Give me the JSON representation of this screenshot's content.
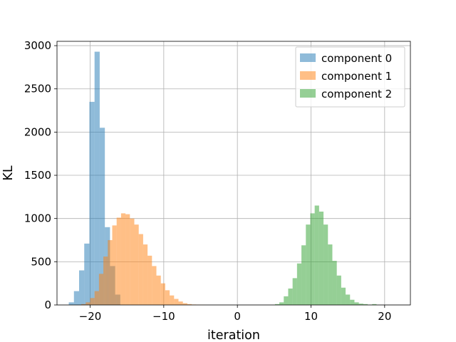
{
  "chart_data": {
    "type": "bar",
    "xlabel": "iteration",
    "ylabel": "KL",
    "xlim": [
      -24.5,
      23.5
    ],
    "ylim": [
      0,
      3050
    ],
    "xticks": [
      -20,
      -10,
      0,
      10,
      20
    ],
    "xtick_labels": [
      "−20",
      "−10",
      "0",
      "10",
      "20"
    ],
    "yticks": [
      0,
      500,
      1000,
      1500,
      2000,
      2500,
      3000
    ],
    "ytick_labels": [
      "0",
      "500",
      "1000",
      "1500",
      "2000",
      "2500",
      "3000"
    ],
    "grid": true,
    "legend_position": "top-right",
    "alpha": 0.5,
    "series": [
      {
        "name": "component 0",
        "color": "#1f77b4",
        "bin_edges": [
          -22.9,
          -22.2,
          -21.5,
          -20.8,
          -20.1,
          -19.4,
          -18.7,
          -18.0,
          -17.3,
          -16.6,
          -15.9
        ],
        "counts": [
          30,
          160,
          400,
          710,
          2350,
          2930,
          2050,
          900,
          450,
          120
        ]
      },
      {
        "name": "component 1",
        "color": "#ff7f0e",
        "bin_edges": [
          -21.2,
          -20.6,
          -20.0,
          -19.4,
          -18.8,
          -18.2,
          -17.6,
          -17.0,
          -16.4,
          -15.8,
          -15.2,
          -14.6,
          -14.0,
          -13.4,
          -12.8,
          -12.2,
          -11.6,
          -11.0,
          -10.4,
          -9.8,
          -9.2,
          -8.6,
          -8.0,
          -7.4,
          -6.8,
          -6.2,
          -5.6,
          -5.0,
          -4.4
        ],
        "counts": [
          10,
          30,
          80,
          160,
          360,
          560,
          750,
          920,
          1010,
          1060,
          1050,
          1000,
          930,
          820,
          700,
          570,
          450,
          340,
          250,
          170,
          110,
          70,
          40,
          20,
          10,
          5,
          3,
          2
        ]
      },
      {
        "name": "component 2",
        "color": "#2ca02c",
        "bin_edges": [
          5.1,
          5.7,
          6.3,
          6.9,
          7.5,
          8.1,
          8.7,
          9.3,
          9.9,
          10.5,
          11.1,
          11.7,
          12.3,
          12.9,
          13.5,
          14.1,
          14.7,
          15.3,
          15.9,
          16.5,
          17.1,
          17.7,
          18.3,
          18.9
        ],
        "counts": [
          10,
          30,
          100,
          190,
          310,
          480,
          690,
          930,
          1060,
          1150,
          1080,
          930,
          700,
          510,
          340,
          200,
          120,
          60,
          30,
          15,
          10,
          3,
          10
        ]
      }
    ]
  }
}
